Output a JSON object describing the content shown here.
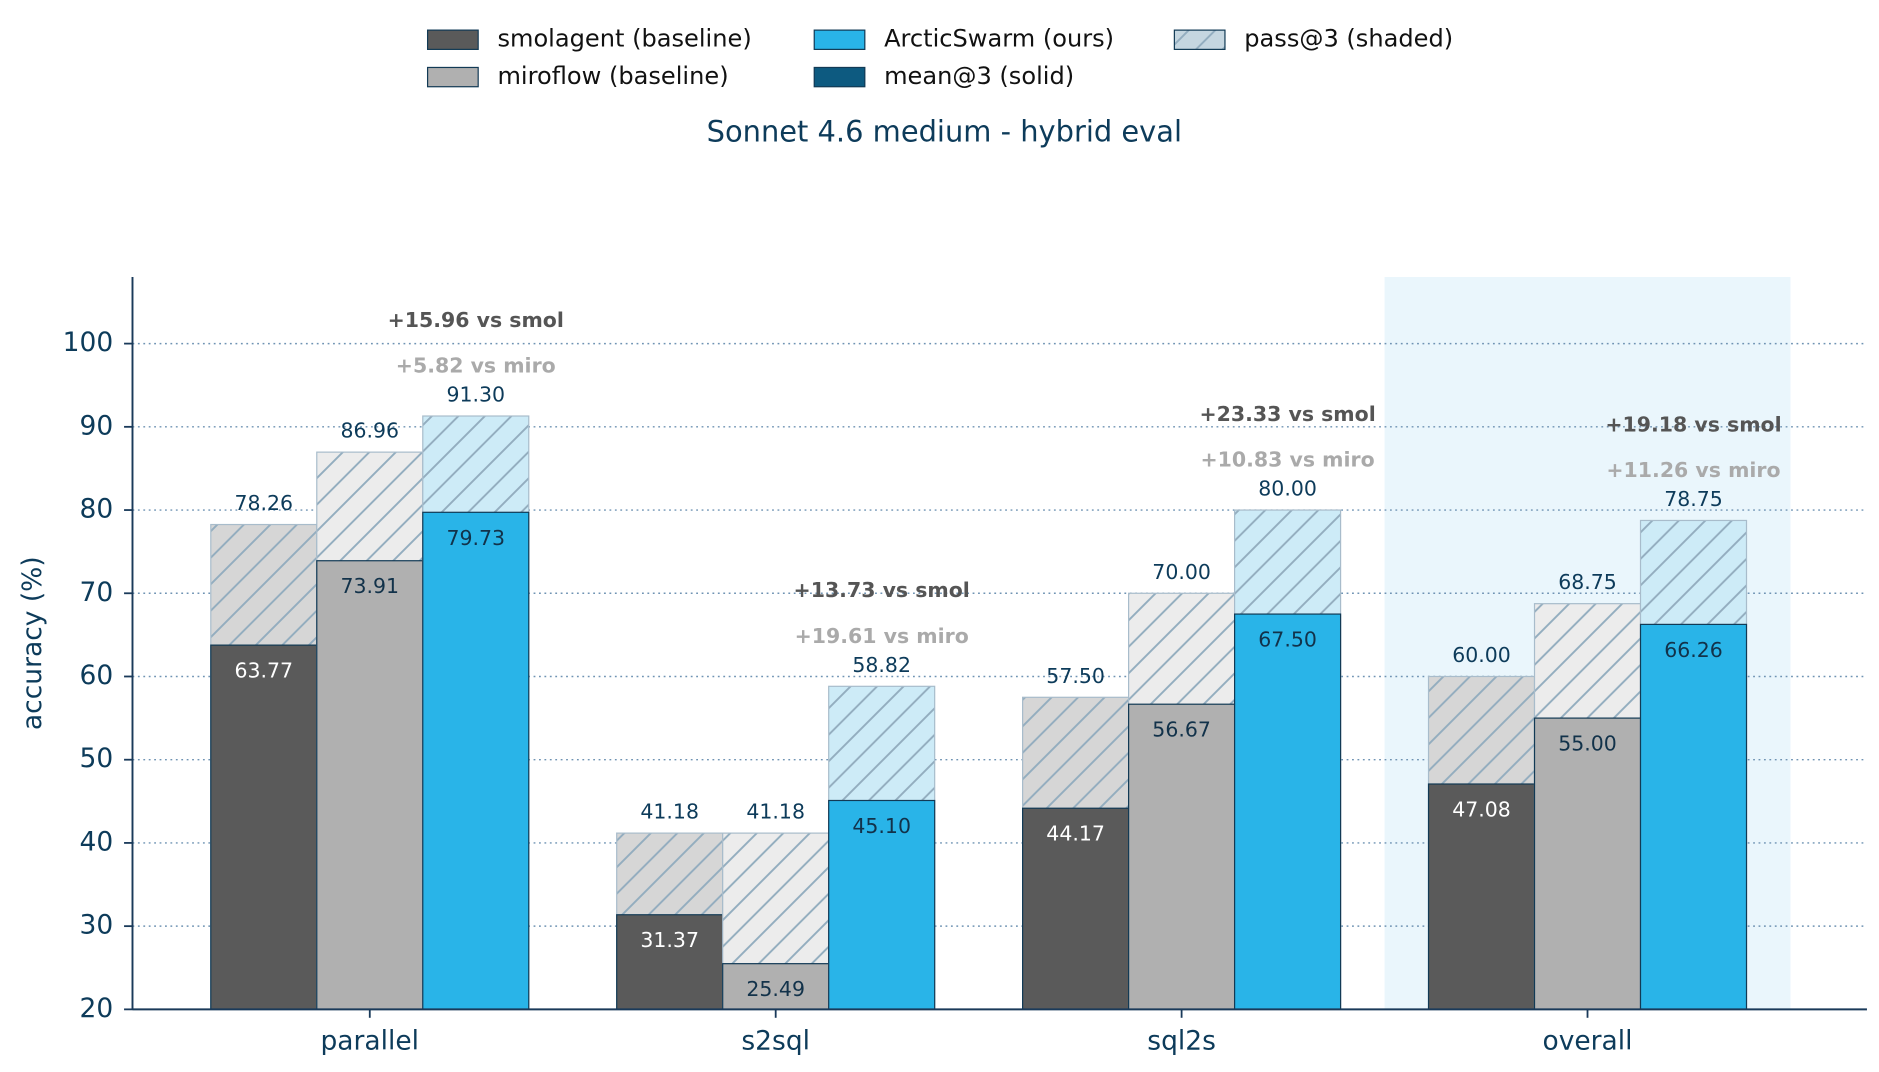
{
  "chart_data": {
    "type": "bar",
    "title": "Sonnet 4.6 medium  -  hybrid eval",
    "y_label": "accuracy (%)",
    "categories": [
      "parallel",
      "s2sql",
      "sql2s",
      "overall"
    ],
    "highlight_index": 3,
    "highlight_color": "#eaf6fc",
    "ylim": [
      20,
      108
    ],
    "yticks": [
      20,
      30,
      40,
      50,
      60,
      70,
      80,
      90,
      100
    ],
    "grid": true,
    "series": [
      {
        "name": "smolagent (baseline)",
        "color": "#5a5a5a",
        "pass_color": "#d6d6d6",
        "values": [
          63.77,
          31.37,
          44.17,
          47.08
        ],
        "value_labels": [
          "63.77",
          "31.37",
          "44.17",
          "47.08"
        ],
        "pass_values": [
          78.26,
          41.18,
          57.5,
          60
        ],
        "pass_value_labels": [
          "78.26",
          "41.18",
          "57.50",
          "60.00"
        ]
      },
      {
        "name": "miroflow (baseline)",
        "color": "#b0b0b0",
        "pass_color": "#ececec",
        "values": [
          73.91,
          25.49,
          56.67,
          55
        ],
        "value_labels": [
          "73.91",
          "25.49",
          "56.67",
          "55.00"
        ],
        "pass_values": [
          86.96,
          41.18,
          70,
          68.75
        ],
        "pass_value_labels": [
          "86.96",
          "41.18",
          "70.00",
          "68.75"
        ]
      },
      {
        "name": "ArcticSwarm (ours)",
        "color": "#29b4e8",
        "pass_color": "#cdebf7",
        "values": [
          79.73,
          45.1,
          67.5,
          66.26
        ],
        "value_labels": [
          "79.73",
          "45.10",
          "67.50",
          "66.26"
        ],
        "pass_values": [
          91.3,
          58.82,
          80,
          78.75
        ],
        "pass_value_labels": [
          "91.30",
          "58.82",
          "80.00",
          "78.75"
        ]
      }
    ],
    "legend_mean": {
      "name": "mean@3 (solid)",
      "color": "#0d5a80"
    },
    "legend_pass": {
      "name": "pass@3 (shaded)",
      "color": "#c5d6e0"
    },
    "annotations": [
      {
        "vs_smol": "+15.96 vs smol",
        "vs_miro": "+5.82 vs miro"
      },
      {
        "vs_smol": "+13.73 vs smol",
        "vs_miro": "+19.61 vs miro"
      },
      {
        "vs_smol": "+23.33 vs smol",
        "vs_miro": "+10.83 vs miro"
      },
      {
        "vs_smol": "+19.18 vs smol",
        "vs_miro": "+11.26 vs miro"
      }
    ]
  }
}
